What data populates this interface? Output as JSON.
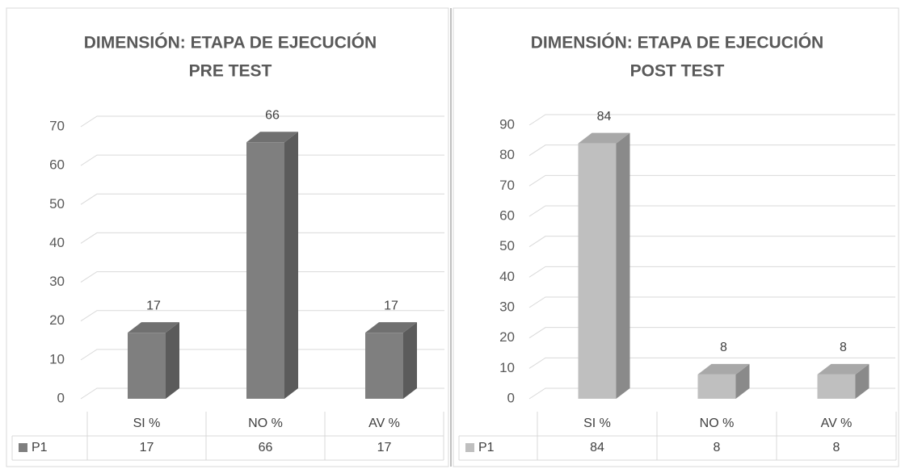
{
  "chart_data": [
    {
      "type": "bar",
      "title": "DIMENSIÓN: ETAPA DE EJECUCIÓN",
      "subtitle": "PRE TEST",
      "categories": [
        "SI %",
        "NO %",
        "AV %"
      ],
      "series": [
        {
          "name": "P1",
          "color": "#7f7f7f",
          "values": [
            17,
            66,
            17
          ]
        }
      ],
      "ylim": [
        0,
        70
      ],
      "yticks": [
        0,
        10,
        20,
        30,
        40,
        50,
        60,
        70
      ],
      "grid": true
    },
    {
      "type": "bar",
      "title": "DIMENSIÓN: ETAPA DE EJECUCIÓN",
      "subtitle": "POST TEST",
      "categories": [
        "SI %",
        "NO %",
        "AV %"
      ],
      "series": [
        {
          "name": "P1",
          "color": "#bfbfbf",
          "values": [
            84,
            8,
            8
          ]
        }
      ],
      "ylim": [
        0,
        90
      ],
      "yticks": [
        0,
        10,
        20,
        30,
        40,
        50,
        60,
        70,
        80,
        90
      ],
      "grid": true
    }
  ]
}
